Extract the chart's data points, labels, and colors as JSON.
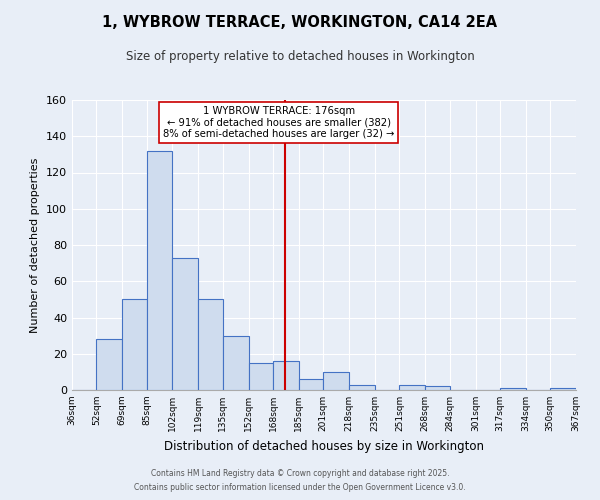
{
  "title": "1, WYBROW TERRACE, WORKINGTON, CA14 2EA",
  "subtitle": "Size of property relative to detached houses in Workington",
  "xlabel": "Distribution of detached houses by size in Workington",
  "ylabel": "Number of detached properties",
  "bins": [
    36,
    52,
    69,
    85,
    102,
    119,
    135,
    152,
    168,
    185,
    201,
    218,
    235,
    251,
    268,
    284,
    301,
    317,
    334,
    350,
    367
  ],
  "counts": [
    0,
    28,
    50,
    132,
    73,
    50,
    30,
    15,
    16,
    6,
    10,
    3,
    0,
    3,
    2,
    0,
    0,
    1,
    0,
    1
  ],
  "bar_facecolor": "#cfdcee",
  "bar_edgecolor": "#4472c4",
  "vline_x": 176,
  "vline_color": "#cc0000",
  "annotation_title": "1 WYBROW TERRACE: 176sqm",
  "annotation_line1": "← 91% of detached houses are smaller (382)",
  "annotation_line2": "8% of semi-detached houses are larger (32) →",
  "annotation_box_color": "#ffffff",
  "annotation_box_edgecolor": "#cc0000",
  "ylim": [
    0,
    160
  ],
  "yticks": [
    0,
    20,
    40,
    60,
    80,
    100,
    120,
    140,
    160
  ],
  "background_color": "#e8eef7",
  "grid_color": "#ffffff",
  "footnote1": "Contains HM Land Registry data © Crown copyright and database right 2025.",
  "footnote2": "Contains public sector information licensed under the Open Government Licence v3.0."
}
